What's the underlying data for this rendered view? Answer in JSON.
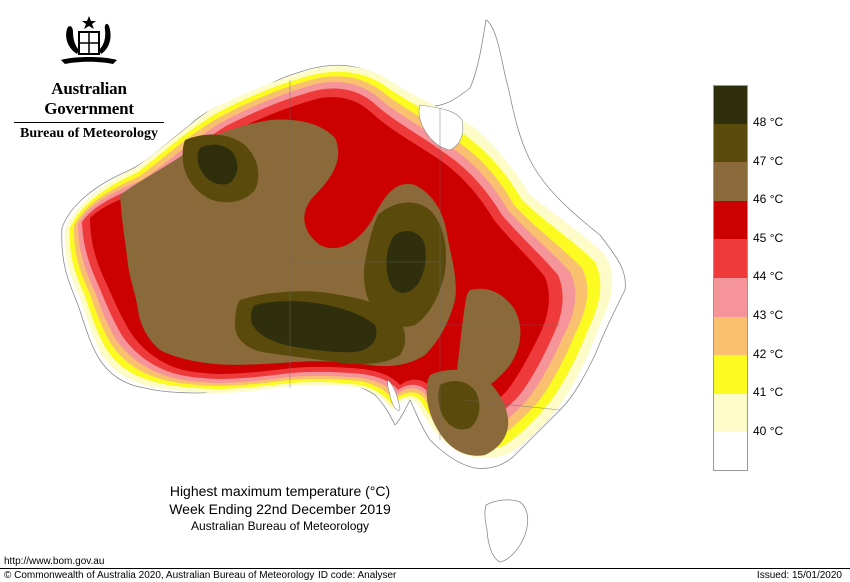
{
  "header": {
    "government": "Australian Government",
    "bureau": "Bureau of Meteorology",
    "crest_icon": "coat-of-arms-icon"
  },
  "map": {
    "title": "Highest maximum temperature (°C)",
    "period": "Week Ending 22nd December 2019",
    "source": "Australian Bureau of Meteorology"
  },
  "legend": {
    "unit": "°C",
    "bands": [
      {
        "color": "#2f2f0d",
        "label": "48"
      },
      {
        "color": "#5a4b0d",
        "label": "47"
      },
      {
        "color": "#8a6a3a",
        "label": "46"
      },
      {
        "color": "#cc0000",
        "label": "45"
      },
      {
        "color": "#ee3a3a",
        "label": "44"
      },
      {
        "color": "#f5959a",
        "label": "43"
      },
      {
        "color": "#f9c070",
        "label": "42"
      },
      {
        "color": "#fbfb22",
        "label": "41"
      },
      {
        "color": "#fdfcc8",
        "label": "40"
      },
      {
        "color": "#ffffff",
        "label": ""
      }
    ]
  },
  "footer": {
    "url": "http://www.bom.gov.au",
    "copyright": "© Commonwealth of Australia 2020, Australian Bureau of Meteorology",
    "id_code": "ID code: Analyser",
    "issued": "Issued: 15/01/2020"
  }
}
